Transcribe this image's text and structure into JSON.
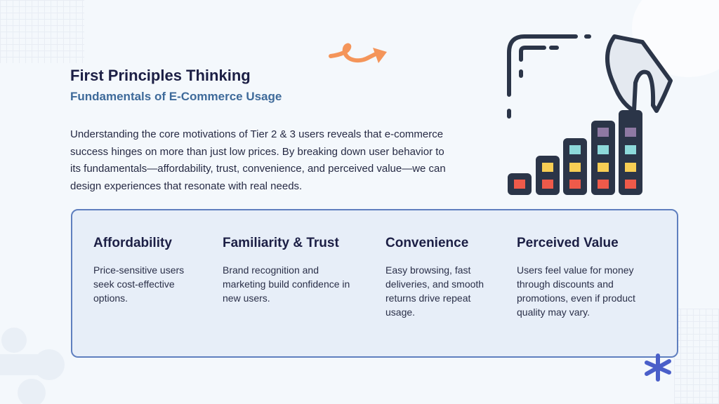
{
  "title": "First Principles Thinking",
  "subtitle": "Fundamentals of E-Commerce Usage",
  "intro": "Understanding the core motivations of Tier 2 & 3 users reveals that e-commerce success hinges on more than just low prices. By breaking down user behavior to its fundamentals—affordability, trust, convenience, and perceived value—we can design experiences that resonate with real needs.",
  "pillars": [
    {
      "heading": "Affordability",
      "text": "Price-sensitive users seek cost-effective options."
    },
    {
      "heading": "Familiarity & Trust",
      "text": "Brand recognition and marketing build confidence in new users."
    },
    {
      "heading": "Convenience",
      "text": "Easy browsing, fast deliveries, and smooth returns drive repeat usage."
    },
    {
      "heading": "Perceived Value",
      "text": "Users feel value for money through discounts and promotions, even if product quality may vary."
    }
  ],
  "colors": {
    "title": "#1c1f45",
    "subtitle": "#3e6a9a",
    "card_border": "#5f7fbf",
    "card_bg": "#e7eef8",
    "accent_orange": "#f4955a",
    "accent_blue": "#4a5fc9"
  },
  "icons": [
    "squiggle-arrow-icon",
    "hand-stacking-bars-illustration",
    "asterisk-icon"
  ]
}
